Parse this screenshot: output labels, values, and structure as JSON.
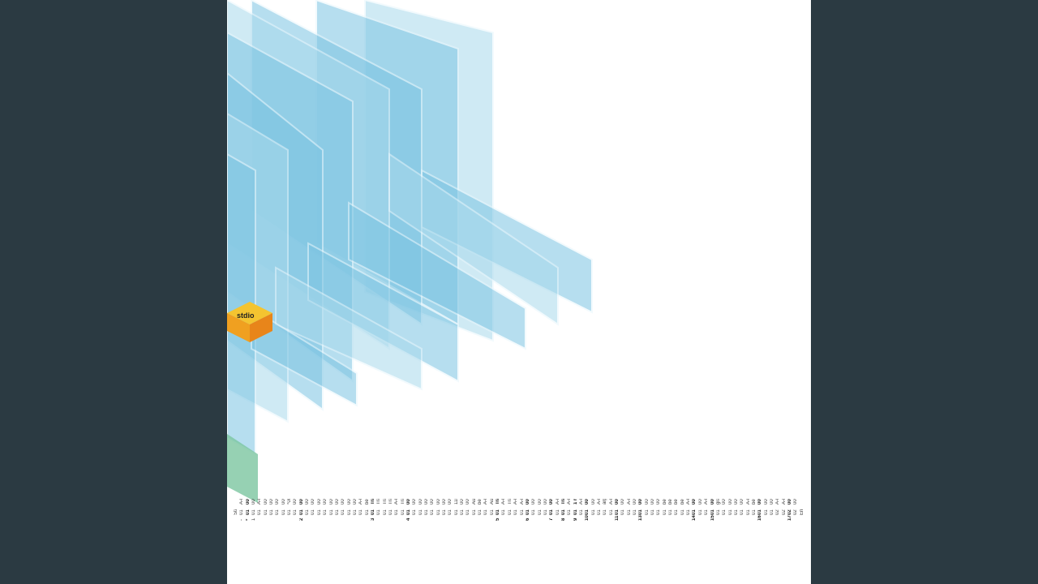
{
  "logo": {
    "text": "stdio",
    "colors": {
      "top": "#f4c430",
      "left": "#f0a020",
      "right": "#e8851a"
    }
  },
  "colors": {
    "background": "#2b3a42",
    "page": "#ffffff",
    "band": "#7cc4e2",
    "band_light": "#a9d9ec",
    "green": "#7cc6a0"
  },
  "list": {
    "start_label": "Start of list",
    "end_label": "End of List",
    "rows": [
      [
        "-",
        "01 : 00 : 03 : 19.39",
        "A-Playback*copied",
        false
      ],
      [
        "*",
        "01 : 00 : 07 : 13.78",
        "00009 a.1",
        true
      ],
      [
        "1",
        "01 : 00 : 07 : 13.78",
        "00009 b.1",
        false
      ],
      [
        "",
        "01 : 01 : 04 : 06.24",
        "A-Playback*copied",
        false
      ],
      [
        "",
        "01 : 01 : 38 : 01.70",
        "00009 c.1",
        false
      ],
      [
        "",
        "01 : 03 : 40 : 14.10",
        "00009 a.5",
        false
      ],
      [
        "",
        "01 : 03 : 40 : 14.10",
        "00009 b.5",
        false
      ],
      [
        "",
        "01 : 03 : 40 : 14.10",
        "00009 c.4",
        false
      ],
      [
        "",
        "01 : 04 : 46 : 16.43",
        "*00009 a.6",
        false
      ],
      [
        "",
        "01 : 04 : 49 : 00.16",
        "00009 b.7",
        false
      ],
      [
        "2",
        "01 : 04 : 49 : 00.79",
        "00020 a",
        true
      ],
      [
        "",
        "01 : 04 : 49 : 00.79",
        "00020 c",
        false
      ],
      [
        "",
        "01 : 04 : 50 : 13.39",
        "00009 b.8",
        false
      ],
      [
        "",
        "01 : 04 : 53 : 00.08",
        "00009 b.11",
        false
      ],
      [
        "",
        "01 : 04 : 54 : 13.31",
        "00009 b.12",
        false
      ],
      [
        "",
        "01 : 04 : 56 : 24.56",
        "00009 b.13",
        false
      ],
      [
        "",
        "01 : 04 : 58 : 12.79",
        "00009 b.14",
        false
      ],
      [
        "",
        "01 : 05 : 00 : 24.64",
        "00009 b.15",
        false
      ],
      [
        "",
        "01 : 05 : 02 : 12.79",
        "00009 b.16",
        false
      ],
      [
        "",
        "01 : 05 : 04 : 24.49",
        "00020 b",
        false
      ],
      [
        "",
        "01 : 11 : 47 : 03.51",
        "A-Playback*copied",
        false
      ],
      [
        "",
        "01 : 11 : 48 : 17.30",
        "be freeze denoised",
        false
      ],
      [
        "3",
        "01 : 11 : 54 : 17.49",
        "Track 15.1",
        true
      ],
      [
        "",
        "01 : 12 : 17 : 05.02",
        "Track 15.3",
        false
      ],
      [
        "",
        "01 : 12 : 26 : 16.31",
        "Track 15.5",
        false
      ],
      [
        "",
        "01 : 12 : 36 : 02.33",
        "Track 15.6",
        false
      ],
      [
        "",
        "01 : 12 : 36 : 09.56",
        "A-Playback*copied",
        false
      ],
      [
        "",
        "01 : 12 : 39 : 21.80",
        "Track 15.8",
        false
      ],
      [
        "4",
        "01 : 12 : 44 : 10.19",
        "00039 d.6",
        true
      ],
      [
        "",
        "01 : 13 : 08 : 17.22",
        "00039 d.5",
        false
      ],
      [
        "",
        "01 : 13 : 08 : 17.22",
        "00039 a",
        false
      ],
      [
        "",
        "01 : 13 : 08 : 17.22",
        "00039 c.1",
        false
      ],
      [
        "",
        "01 : 13 : 08 : 17.22",
        "00039 b",
        false
      ],
      [
        "",
        "01 : 18 : 36 : 24.33",
        "00039 b.2",
        false
      ],
      [
        "",
        "01 : 18 : 38 : 23.14",
        "00039 a.7",
        false
      ],
      [
        "",
        "01 : 18 : 50 : 04.78",
        "00039 a.8",
        false
      ],
      [
        "",
        "01 : 19 : 29 : 20.42",
        "11b g-fez.3",
        false
      ],
      [
        "",
        "01 : 19 : 45 : 00.31",
        "00004 c.5",
        false
      ],
      [
        "",
        "01 : 20 : 15 : 11.26",
        "00004 c.6",
        false
      ],
      [
        "",
        "01 : 20 : 44 : 18.56",
        "Audio 2*created",
        false
      ],
      [
        "",
        "01 : 20 : 45 : 12.68",
        "beat 01",
        false
      ],
      [
        "",
        "01 : 21 : 02 : 23.46",
        "A-Playback*copied",
        false
      ],
      [
        "",
        "01 : 21 : 05 : 21.40",
        "Audio 2*created",
        false
      ],
      [
        "5",
        "01 : 21 : 08 : 15.24",
        "Track 12.4",
        true
      ],
      [
        "",
        "01 : 23 : 02 : 17.57",
        "A-Playback*copied",
        false
      ],
      [
        "",
        "01 : 23 : 02 : 17.57",
        "Track 18.1",
        false
      ],
      [
        "",
        "01 : 25 : 11 : 19.39",
        "A-Playback*copied",
        false
      ],
      [
        "",
        "01 : 25 : 12 : 06.32",
        "A-Playback*created",
        false
      ],
      [
        "6",
        "01 : 25 : 15 : 08.69",
        "0001 7 a.1",
        true
      ],
      [
        "",
        "01 : 25 : 15 : 08.09",
        "0001 7 c.3",
        false
      ],
      [
        "",
        "01 : 25 : 16 : 13.51",
        "0001 7 b.1",
        false
      ],
      [
        "",
        "01 : 30 : 12 : 22.35",
        "0001 7 b.2",
        false
      ],
      [
        "7",
        "01 : 30 : 26 : 18.19",
        "00005 re     vers on C",
        true
      ],
      [
        "",
        "01 : 36 : 12 : 24.29",
        "A-Playback*copied",
        false
      ],
      [
        "8",
        "01 : 36 : 20 : 13.27",
        "Track 19",
        true
      ],
      [
        "",
        "01 : 36 : 47 : 05.13",
        "A-Playback*copied",
        false
      ],
      [
        "9",
        "01 : 36 : 50 : 24.13",
        "1 nk el m n.a ff",
        true
      ],
      [
        "",
        "01 : 37 : 49 : 13.58",
        "A-Playback*copied",
        false
      ],
      [
        "10",
        "01 : 37 : 52 : 07.34",
        "00018 old end ng",
        true
      ],
      [
        "",
        "01 : 39 : 17 : 23.42",
        "00018 old end ng.2",
        false
      ],
      [
        "",
        "01 : 40 : 35 : 21.17",
        "A-Playback*copied",
        false
      ],
      [
        "",
        "01 : 40 : 41 : 06.67",
        "arp freeze",
        false
      ],
      [
        "",
        "01 : 40 : 52 : 22.39",
        "A-Playback*copied",
        false
      ],
      [
        "11",
        "01 : 41 : 00 : 14.18",
        "00016 a.5",
        true
      ],
      [
        "",
        "01 : 41 : 02 : 10.43",
        "00016 a.3",
        false
      ],
      [
        "",
        "01 : 45 : 09 : 18.56",
        "A-Playback*copied",
        false
      ],
      [
        "",
        "01 : 45 : 15 : 08.57",
        "00016 a.6",
        false
      ],
      [
        "13",
        "01 : 45 : 17 : 07.54",
        "00004 a.3",
        true
      ],
      [
        "",
        "01 : 45 : 17 : 07.54",
        "00004 b.9",
        false
      ],
      [
        "",
        "01 : 45 : 17 : 07.54",
        "00004 d.6",
        false
      ],
      [
        "",
        "01 : 47 : 13 : 00.39",
        "00004 a.6",
        false
      ],
      [
        "",
        "01 : 47 : 13 : 14.06",
        "be 0001",
        false
      ],
      [
        "",
        "01 : 47 : 55 : 24.37",
        "be 0002",
        false
      ],
      [
        "",
        "01 : 50 : 15 : 20.42",
        "be 0003a",
        false
      ],
      [
        "",
        "01 : 51 : 03 : 01.50",
        "be 0004",
        false
      ],
      [
        "",
        "01 : 51 : 24 : 00.20",
        "A-Playback*copied",
        false
      ],
      [
        "14",
        "01 : 51 : 27 : 19.59",
        "00002 cords.1",
        true
      ],
      [
        "",
        "01 : 51 : 27 : 19.59",
        "00002 drums.1",
        false
      ],
      [
        "",
        "01 : 52 : 11 : 03.67",
        "A-Playback*copied",
        false
      ],
      [
        "15",
        "01 : 52 : 13 : 06.67",
        "00030 d.5",
        true
      ],
      [
        "",
        "01 : 52 : 58 : 05.53",
        "grans.2",
        false
      ],
      [
        "",
        "01 : 53 : 19 : 24.45",
        "00030 d.2",
        false
      ],
      [
        "",
        "01 : 53 : 21 : 21.64",
        "00030 a.87",
        false
      ],
      [
        "",
        "01 : 53 : 21 : 21.64",
        "00030 b.2",
        false
      ],
      [
        "",
        "01 : 53 : 21 : 21.64",
        "00030 c.1",
        false
      ],
      [
        "",
        "01 : 58 : 25 : 24.56",
        "A-Playback*copied",
        false
      ],
      [
        "",
        "01 : 58 : 27 : 07.54",
        "be rev 3",
        false
      ],
      [
        "16",
        "01 : 58 : 29 : 07.31",
        "00024 b.2",
        true
      ],
      [
        "",
        "01 : 58 : 29 : 07.31",
        "00024 c",
        false
      ],
      [
        "",
        "01 : 59 : 23 : 13.47",
        "00024 a.1",
        false
      ],
      [
        "",
        "02 : 02 : 01 : 00.76",
        "A-Playback*created",
        false
      ],
      [
        "",
        "02 : 02 : 04 : 00.67",
        "A-Playback*copied",
        false
      ],
      [
        "17",
        "02 : 02 : 08 : 00.44",
        "00036 a",
        true
      ],
      [
        "",
        "02 : 02 : 08 : 00.44",
        "00036 b",
        false
      ]
    ]
  }
}
